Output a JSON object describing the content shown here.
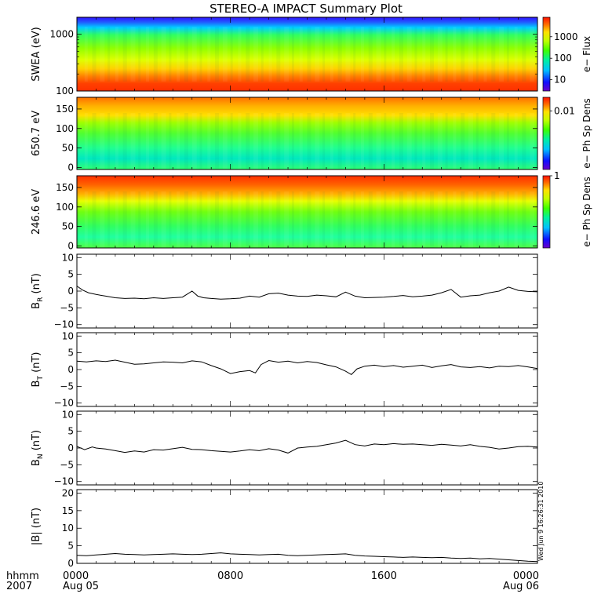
{
  "title": "STEREO-A IMPACT Summary Plot",
  "stamp": "Wed Jun  9 16:26:31 2010",
  "time_axis": {
    "corner_labels": [
      "hhmm",
      "2007"
    ],
    "ticks": [
      {
        "value": 0,
        "lines": [
          "0000",
          "Aug 05"
        ]
      },
      {
        "value": 8,
        "lines": [
          "0800"
        ]
      },
      {
        "value": 16,
        "lines": [
          "1600"
        ]
      },
      {
        "value": 24,
        "lines": [
          "0000",
          "Aug 06"
        ]
      }
    ]
  },
  "chart_data": [
    {
      "type": "heatmap",
      "ylabel": "SWEA (eV)",
      "yscale": "log",
      "ylim": [
        100,
        2000
      ],
      "yticks": [
        {
          "value": 100,
          "label": "100"
        },
        {
          "value": 1000,
          "label": "1000"
        }
      ],
      "colorbar": {
        "label": "e− Flux",
        "scale": "log",
        "range": [
          3,
          8000
        ],
        "ticks": [
          {
            "value": 10,
            "label": "10"
          },
          {
            "value": 100,
            "label": "100"
          },
          {
            "value": 1000,
            "label": "1000"
          }
        ]
      }
    },
    {
      "type": "heatmap",
      "ylabel": "650.7 eV",
      "ylim": [
        -5,
        180
      ],
      "yticks": [
        {
          "value": 0,
          "label": "0"
        },
        {
          "value": 50,
          "label": "50"
        },
        {
          "value": 100,
          "label": "100"
        },
        {
          "value": 150,
          "label": "150"
        }
      ],
      "colorbar": {
        "label": "e− Ph Sp Dens",
        "scale": "log",
        "range": [
          0.0005,
          0.02
        ],
        "ticks": [
          {
            "value": 0.01,
            "label": "0.01"
          }
        ]
      }
    },
    {
      "type": "heatmap",
      "ylabel": "246.6 eV",
      "ylim": [
        -5,
        180
      ],
      "yticks": [
        {
          "value": 0,
          "label": "0"
        },
        {
          "value": 50,
          "label": "50"
        },
        {
          "value": 100,
          "label": "100"
        },
        {
          "value": 150,
          "label": "150"
        }
      ],
      "colorbar": {
        "label": "e− Ph Sp Dens",
        "scale": "log",
        "range": [
          0.03,
          1.0
        ],
        "ticks": [
          {
            "value": 1,
            "label": "1"
          }
        ]
      }
    },
    {
      "type": "line",
      "ylabel": "B",
      "ylabel_sub": "R",
      "ylabel_unit": " (nT)",
      "ylim": [
        -11,
        11
      ],
      "yticks": [
        {
          "value": -10,
          "label": "−10"
        },
        {
          "value": -5,
          "label": "−5"
        },
        {
          "value": 0,
          "label": "0"
        },
        {
          "value": 5,
          "label": "5"
        },
        {
          "value": 10,
          "label": "10"
        }
      ],
      "x": [
        0,
        0.3,
        0.6,
        1,
        1.5,
        2,
        2.5,
        3,
        3.5,
        4,
        4.5,
        5,
        5.5,
        6,
        6.3,
        6.6,
        7,
        7.5,
        8,
        8.5,
        9,
        9.5,
        10,
        10.5,
        11,
        11.5,
        12,
        12.5,
        13,
        13.5,
        14,
        14.5,
        15,
        15.5,
        16,
        16.5,
        17,
        17.5,
        18,
        18.5,
        19,
        19.5,
        20,
        20.5,
        21,
        21.5,
        22,
        22.5,
        23,
        23.5,
        24
      ],
      "y": [
        1.5,
        0.3,
        -0.5,
        -1,
        -1.5,
        -2,
        -2.2,
        -2.1,
        -2.3,
        -2,
        -2.2,
        -2,
        -1.8,
        0,
        -1.5,
        -2,
        -2.2,
        -2.4,
        -2.3,
        -2.1,
        -1.5,
        -1.8,
        -0.8,
        -0.6,
        -1.2,
        -1.5,
        -1.6,
        -1.2,
        -1.4,
        -1.7,
        -0.3,
        -1.5,
        -2,
        -1.9,
        -1.8,
        -1.6,
        -1.3,
        -1.7,
        -1.5,
        -1.2,
        -0.5,
        0.5,
        -1.8,
        -1.4,
        -1.2,
        -0.5,
        0,
        1.2,
        0.2,
        -0.1,
        -0.2
      ]
    },
    {
      "type": "line",
      "ylabel": "B",
      "ylabel_sub": "T",
      "ylabel_unit": " (nT)",
      "ylim": [
        -11,
        11
      ],
      "yticks": [
        {
          "value": -10,
          "label": "−10"
        },
        {
          "value": -5,
          "label": "−5"
        },
        {
          "value": 0,
          "label": "0"
        },
        {
          "value": 5,
          "label": "5"
        },
        {
          "value": 10,
          "label": "10"
        }
      ],
      "x": [
        0,
        0.5,
        1,
        1.5,
        2,
        2.5,
        3,
        3.5,
        4,
        4.5,
        5,
        5.5,
        6,
        6.5,
        7,
        7.5,
        8,
        8.5,
        9,
        9.3,
        9.6,
        10,
        10.5,
        11,
        11.5,
        12,
        12.5,
        13,
        13.5,
        14,
        14.3,
        14.6,
        15,
        15.5,
        16,
        16.5,
        17,
        17.5,
        18,
        18.5,
        19,
        19.5,
        20,
        20.5,
        21,
        21.5,
        22,
        22.5,
        23,
        23.5,
        24
      ],
      "y": [
        2.5,
        2.3,
        2.6,
        2.4,
        2.8,
        2.2,
        1.6,
        1.7,
        2.0,
        2.3,
        2.2,
        2.0,
        2.6,
        2.3,
        1.2,
        0.2,
        -1.2,
        -0.6,
        -0.3,
        -1.0,
        1.5,
        2.7,
        2.2,
        2.5,
        2.0,
        2.4,
        2.1,
        1.4,
        0.8,
        -0.5,
        -1.5,
        0.2,
        1.0,
        1.3,
        0.9,
        1.2,
        0.7,
        1.0,
        1.3,
        0.6,
        1.1,
        1.5,
        0.8,
        0.6,
        0.9,
        0.5,
        1.0,
        0.9,
        1.2,
        0.8,
        0.3
      ]
    },
    {
      "type": "line",
      "ylabel": "B",
      "ylabel_sub": "N",
      "ylabel_unit": " (nT)",
      "ylim": [
        -11,
        11
      ],
      "yticks": [
        {
          "value": -10,
          "label": "−10"
        },
        {
          "value": -5,
          "label": "−5"
        },
        {
          "value": 0,
          "label": "0"
        },
        {
          "value": 5,
          "label": "5"
        },
        {
          "value": 10,
          "label": "10"
        }
      ],
      "x": [
        0,
        0.4,
        0.8,
        1,
        1.5,
        2,
        2.5,
        3,
        3.5,
        4,
        4.5,
        5,
        5.5,
        6,
        6.5,
        7,
        7.5,
        8,
        8.5,
        9,
        9.5,
        10,
        10.5,
        11,
        11.5,
        12,
        12.5,
        13,
        13.5,
        14,
        14.5,
        15,
        15.5,
        16,
        16.5,
        17,
        17.5,
        18,
        18.5,
        19,
        19.5,
        20,
        20.5,
        21,
        21.5,
        22,
        22.5,
        23,
        23.5,
        24
      ],
      "y": [
        0.5,
        -0.5,
        0.3,
        0.0,
        -0.3,
        -0.8,
        -1.3,
        -0.9,
        -1.2,
        -0.5,
        -0.6,
        -0.2,
        0.2,
        -0.4,
        -0.5,
        -0.8,
        -1.0,
        -1.2,
        -0.9,
        -0.5,
        -0.8,
        -0.2,
        -0.6,
        -1.5,
        0.0,
        0.3,
        0.5,
        1.0,
        1.5,
        2.3,
        1.0,
        0.6,
        1.2,
        1.0,
        1.3,
        1.1,
        1.2,
        1.0,
        0.8,
        1.1,
        0.9,
        0.6,
        1.0,
        0.5,
        0.2,
        -0.3,
        0.0,
        0.4,
        0.5,
        0.3
      ]
    },
    {
      "type": "line",
      "ylabel": "|B| (nT)",
      "ylim": [
        0,
        21
      ],
      "yticks": [
        {
          "value": 0,
          "label": "0"
        },
        {
          "value": 5,
          "label": "5"
        },
        {
          "value": 10,
          "label": "10"
        },
        {
          "value": 15,
          "label": "15"
        },
        {
          "value": 20,
          "label": "20"
        }
      ],
      "x": [
        0,
        0.5,
        1,
        1.5,
        2,
        2.5,
        3,
        3.5,
        4,
        4.5,
        5,
        5.5,
        6,
        6.5,
        7,
        7.5,
        8,
        8.5,
        9,
        9.5,
        10,
        10.5,
        11,
        11.5,
        12,
        12.5,
        13,
        13.5,
        14,
        14.5,
        15,
        15.5,
        16,
        16.5,
        17,
        17.5,
        18,
        18.5,
        19,
        19.5,
        20,
        20.5,
        21,
        21.5,
        22,
        22.5,
        23,
        23.5,
        24
      ],
      "y": [
        2.3,
        2.2,
        2.4,
        2.6,
        2.8,
        2.6,
        2.5,
        2.4,
        2.5,
        2.6,
        2.7,
        2.6,
        2.5,
        2.6,
        2.8,
        3.0,
        2.7,
        2.6,
        2.5,
        2.4,
        2.5,
        2.6,
        2.3,
        2.2,
        2.3,
        2.4,
        2.5,
        2.6,
        2.7,
        2.3,
        2.1,
        2.0,
        1.9,
        1.8,
        1.7,
        1.8,
        1.7,
        1.6,
        1.7,
        1.5,
        1.4,
        1.5,
        1.3,
        1.4,
        1.2,
        1.0,
        0.8,
        0.6,
        0.5
      ]
    }
  ]
}
